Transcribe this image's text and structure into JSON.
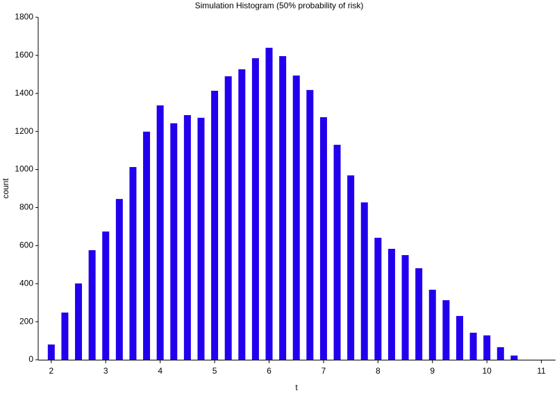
{
  "chart_data": {
    "type": "bar",
    "title": "Simulation Histogram (50% probability of risk)",
    "x_label": "t",
    "y_label": "count",
    "x": [
      2,
      2.25,
      2.5,
      2.75,
      3,
      3.25,
      3.5,
      3.75,
      4,
      4.25,
      4.5,
      4.75,
      5,
      5.25,
      5.5,
      5.75,
      6,
      6.25,
      6.5,
      6.75,
      7,
      7.25,
      7.5,
      7.75,
      8,
      8.25,
      8.5,
      8.75,
      9,
      9.25,
      9.5,
      9.75,
      10,
      10.25,
      10.5
    ],
    "values": [
      80,
      248,
      401,
      576,
      674,
      845,
      1013,
      1199,
      1337,
      1243,
      1286,
      1272,
      1414,
      1490,
      1527,
      1585,
      1640,
      1596,
      1494,
      1418,
      1275,
      1130,
      969,
      827,
      641,
      583,
      550,
      481,
      368,
      313,
      230,
      142,
      128,
      66,
      22
    ],
    "color": "#2200ee",
    "xlim": [
      1.76,
      11.26
    ],
    "xticks": [
      2,
      3,
      4,
      5,
      6,
      7,
      8,
      9,
      10,
      11
    ],
    "ylim": [
      0,
      1800
    ],
    "yticks": [
      0,
      200,
      400,
      600,
      800,
      1000,
      1200,
      1400,
      1600,
      1800
    ],
    "grid": false
  }
}
